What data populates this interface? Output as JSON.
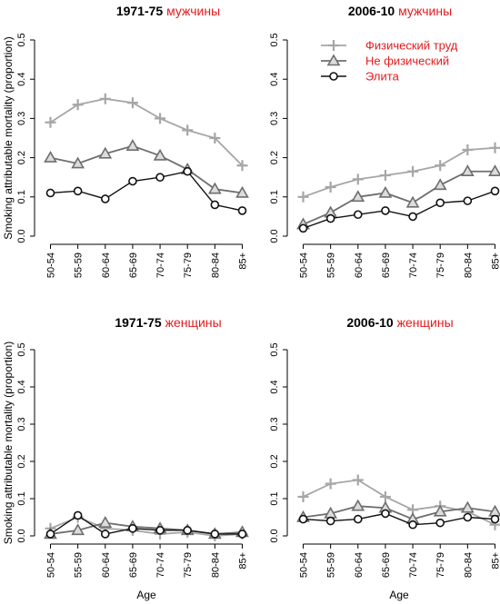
{
  "chart_data": [
    {
      "type": "line",
      "title_year": "1971-75",
      "title_sex": "мужчины",
      "ylabel": "Smoking attributable mortality (proportion)",
      "xlabel": "",
      "ylim": [
        0,
        0.5
      ],
      "yticks": [
        "0.0",
        "0.1",
        "0.2",
        "0.3",
        "0.4",
        "0.5"
      ],
      "categories": [
        "50-54",
        "55-59",
        "60-64",
        "65-69",
        "70-74",
        "75-79",
        "80-84",
        "85+"
      ],
      "series": [
        {
          "name": "Физический труд",
          "values": [
            0.29,
            0.335,
            0.35,
            0.34,
            0.3,
            0.27,
            0.25,
            0.18
          ]
        },
        {
          "name": "Не физический",
          "values": [
            0.2,
            0.185,
            0.21,
            0.23,
            0.205,
            0.17,
            0.12,
            0.11
          ]
        },
        {
          "name": "Элита",
          "values": [
            0.11,
            0.115,
            0.095,
            0.14,
            0.15,
            0.165,
            0.08,
            0.065
          ]
        }
      ]
    },
    {
      "type": "line",
      "title_year": "2006-10",
      "title_sex": "мужчины",
      "ylabel": "",
      "xlabel": "",
      "ylim": [
        0,
        0.5
      ],
      "yticks": [
        "0.0",
        "0.1",
        "0.2",
        "0.3",
        "0.4",
        "0.5"
      ],
      "categories": [
        "50-54",
        "55-59",
        "60-64",
        "65-69",
        "70-74",
        "75-79",
        "80-84",
        "85+"
      ],
      "legend": {
        "position": "top-right",
        "entries": [
          "Физический труд",
          "Не физический",
          "Элита"
        ]
      },
      "series": [
        {
          "name": "Физический труд",
          "values": [
            0.1,
            0.125,
            0.145,
            0.155,
            0.165,
            0.18,
            0.22,
            0.225
          ]
        },
        {
          "name": "Не физический",
          "values": [
            0.03,
            0.06,
            0.1,
            0.11,
            0.085,
            0.13,
            0.165,
            0.165
          ]
        },
        {
          "name": "Элита",
          "values": [
            0.02,
            0.045,
            0.055,
            0.065,
            0.05,
            0.085,
            0.09,
            0.115
          ]
        }
      ]
    },
    {
      "type": "line",
      "title_year": "1971-75",
      "title_sex": "женщины",
      "ylabel": "Smoking attributable mortality (proportion)",
      "xlabel": "Age",
      "ylim": [
        0,
        0.5
      ],
      "yticks": [
        "0.0",
        "0.1",
        "0.2",
        "0.3",
        "0.4",
        "0.5"
      ],
      "categories": [
        "50-54",
        "55-59",
        "60-64",
        "65-69",
        "70-74",
        "75-79",
        "80-84",
        "85+"
      ],
      "series": [
        {
          "name": "Физический труд",
          "values": [
            0.02,
            0.05,
            0.02,
            0.015,
            0.005,
            0.01,
            0.0,
            0.005
          ]
        },
        {
          "name": "Не физический",
          "values": [
            0.005,
            0.015,
            0.035,
            0.025,
            0.02,
            0.015,
            0.005,
            0.01
          ]
        },
        {
          "name": "Элита",
          "values": [
            0.005,
            0.055,
            0.005,
            0.02,
            0.015,
            0.015,
            0.005,
            0.005
          ]
        }
      ]
    },
    {
      "type": "line",
      "title_year": "2006-10",
      "title_sex": "женщины",
      "ylabel": "",
      "xlabel": "Age",
      "ylim": [
        0,
        0.5
      ],
      "yticks": [
        "0.0",
        "0.1",
        "0.2",
        "0.3",
        "0.4",
        "0.5"
      ],
      "categories": [
        "50-54",
        "55-59",
        "60-64",
        "65-69",
        "70-74",
        "75-79",
        "80-84",
        "85+"
      ],
      "series": [
        {
          "name": "Физический труд",
          "values": [
            0.105,
            0.14,
            0.15,
            0.105,
            0.07,
            0.08,
            0.065,
            0.03
          ]
        },
        {
          "name": "Не физический",
          "values": [
            0.05,
            0.06,
            0.08,
            0.075,
            0.045,
            0.065,
            0.075,
            0.065
          ]
        },
        {
          "name": "Элита",
          "values": [
            0.045,
            0.04,
            0.045,
            0.06,
            0.03,
            0.035,
            0.05,
            0.045
          ]
        }
      ]
    }
  ],
  "colors": {
    "manual": "#a6a6a6",
    "nonmanual": "#6e6e6e",
    "elite": "#111111",
    "title_accent": "#e41a1c"
  },
  "markers": {
    "manual": "plus",
    "nonmanual": "triangle",
    "elite": "circle"
  }
}
